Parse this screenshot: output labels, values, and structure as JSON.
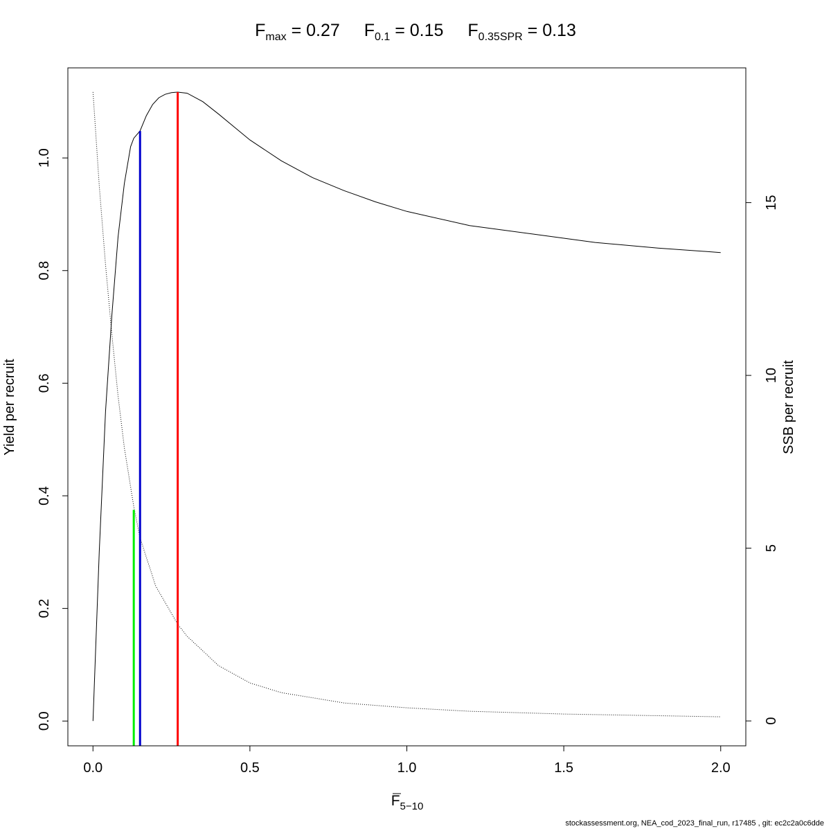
{
  "title": {
    "fmax": {
      "symbol": "F",
      "sub": "max",
      "text": " = 0.27"
    },
    "f01": {
      "symbol": "F",
      "sub": "0.1",
      "text": " = 0.15"
    },
    "fspr": {
      "symbol": "F",
      "sub": "0.35SPR",
      "text": " = 0.13"
    }
  },
  "footer": "stockassessment.org, NEA_cod_2023_final_run, r17485 , git: ec2c2a0c6dde",
  "chart_data": {
    "type": "line",
    "xlabel": {
      "symbol": "F",
      "sub": "5−10"
    },
    "ylabel": "Yield per recruit",
    "ylabel_right": "SSB per recruit",
    "xlim": [
      -0.08,
      2.08
    ],
    "ylim": [
      -0.044,
      1.16
    ],
    "ylim_right": [
      -0.72,
      18.9
    ],
    "x_ticks": [
      0.0,
      0.5,
      1.0,
      1.5,
      2.0
    ],
    "x_tick_labels": [
      "0.0",
      "0.5",
      "1.0",
      "1.5",
      "2.0"
    ],
    "y_ticks": [
      0.0,
      0.2,
      0.4,
      0.6,
      0.8,
      1.0
    ],
    "y_tick_labels": [
      "0.0",
      "0.2",
      "0.4",
      "0.6",
      "0.8",
      "1.0"
    ],
    "y_right_ticks": [
      0,
      5,
      10,
      15
    ],
    "y_right_tick_labels": [
      "0",
      "5",
      "10",
      "15"
    ],
    "series": [
      {
        "axis": "left",
        "style": "solid",
        "color": "#000000",
        "x": [
          0,
          0.02,
          0.04,
          0.06,
          0.08,
          0.1,
          0.12,
          0.13,
          0.15,
          0.17,
          0.19,
          0.21,
          0.23,
          0.25,
          0.27,
          0.3,
          0.35,
          0.4,
          0.45,
          0.5,
          0.6,
          0.7,
          0.8,
          0.9,
          1.0,
          1.2,
          1.4,
          1.6,
          1.8,
          2.0
        ],
        "values": [
          0.0,
          0.3,
          0.55,
          0.72,
          0.86,
          0.955,
          1.02,
          1.035,
          1.048,
          1.075,
          1.095,
          1.107,
          1.113,
          1.116,
          1.117,
          1.115,
          1.1,
          1.078,
          1.055,
          1.032,
          0.995,
          0.965,
          0.942,
          0.922,
          0.905,
          0.88,
          0.865,
          0.85,
          0.84,
          0.832
        ]
      },
      {
        "axis": "right",
        "style": "dotted",
        "color": "#000000",
        "x": [
          0,
          0.02,
          0.04,
          0.06,
          0.08,
          0.1,
          0.13,
          0.15,
          0.2,
          0.27,
          0.3,
          0.4,
          0.5,
          0.6,
          0.8,
          1.0,
          1.2,
          1.5,
          2.0
        ],
        "values": [
          18.2,
          15.5,
          13.2,
          11.2,
          9.4,
          7.9,
          6.2,
          5.3,
          3.9,
          2.8,
          2.45,
          1.6,
          1.1,
          0.82,
          0.52,
          0.38,
          0.28,
          0.2,
          0.12
        ]
      }
    ],
    "reference_lines": [
      {
        "name": "F0.35SPR",
        "x": 0.13,
        "ymin": 0.0,
        "ymax": 0.375,
        "color": "#00ee00"
      },
      {
        "name": "F0.1",
        "x": 0.15,
        "ymin": 0.0,
        "ymax": 1.048,
        "color": "#0000cd"
      },
      {
        "name": "Fmax",
        "x": 0.27,
        "ymin": 0.0,
        "ymax": 1.117,
        "color": "#ff0000"
      }
    ]
  }
}
